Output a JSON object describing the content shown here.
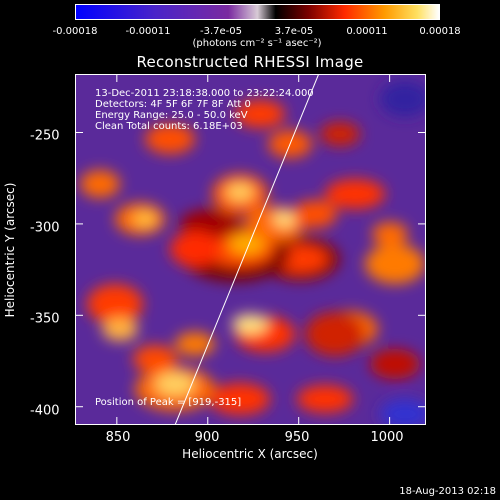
{
  "colorbar": {
    "tick_labels": [
      "-0.00018",
      "-0.00011",
      "-3.7e-05",
      "3.7e-05",
      "0.00011",
      "0.00018"
    ],
    "units": "(photons cm⁻² s⁻¹ asec⁻²)",
    "colors": [
      "#0000ff",
      "#4a24c8",
      "#7a2aa0",
      "#d8cbd6",
      "#000000",
      "#7a0000",
      "#ff2a00",
      "#ff9a00",
      "#ffe060",
      "#ffffff"
    ]
  },
  "title": "Reconstructed RHESSI Image",
  "info_lines": [
    "13-Dec-2011 23:18:38.000 to 23:22:24.000",
    "Detectors: 4F 5F 6F 7F 8F   Att 0",
    "Energy Range: 25.0 - 50.0 keV",
    "Clean     Total counts: 6.18E+03"
  ],
  "peak_label": "Position of Peak = [919,-315]",
  "axes": {
    "xlabel": "Heliocentric X (arcsec)",
    "ylabel": "Heliocentric Y (arcsec)",
    "x_ticks": [
      "850",
      "900",
      "950",
      "1000"
    ],
    "y_ticks": [
      "-250",
      "-300",
      "-350",
      "-400"
    ],
    "xlim": [
      827,
      1020
    ],
    "ylim": [
      -410,
      -218
    ]
  },
  "limb_line": {
    "from": [
      882,
      -410
    ],
    "to": [
      961,
      -218
    ]
  },
  "peak_position": [
    919,
    -315
  ],
  "date_stamp": "18-Aug-2013 02:18"
}
